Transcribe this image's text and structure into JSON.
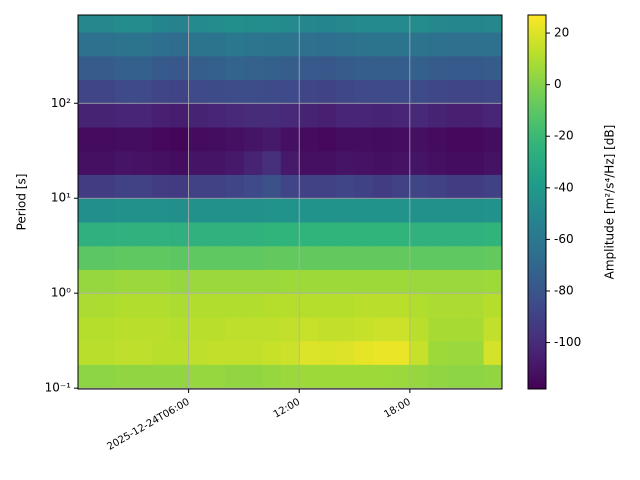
{
  "chart_data": {
    "type": "heatmap",
    "ylabel": "Period [s]",
    "colorbar_label": "Amplitude [m²/s⁴/Hz] [dB]",
    "y_log": true,
    "grid": true,
    "colormap": "viridis",
    "xlim": [
      "2025-12-24T00:00",
      "2025-12-24T23:00"
    ],
    "xticks": [
      {
        "value": "2025-12-24T06:00",
        "label": "2025-12-24T06:00"
      },
      {
        "value": "2025-12-24T12:00",
        "label": "12:00"
      },
      {
        "value": "2025-12-24T18:00",
        "label": "18:00"
      }
    ],
    "ylim": [
      0.098,
      850
    ],
    "yticks": [
      {
        "value": 0.1,
        "label": "10⁻¹"
      },
      {
        "value": 1,
        "label": "10⁰"
      },
      {
        "value": 10,
        "label": "10¹"
      },
      {
        "value": 100,
        "label": "10²"
      }
    ],
    "clim": [
      -118,
      27
    ],
    "cticks": [
      20,
      0,
      -20,
      -40,
      -60,
      -80,
      -100
    ],
    "x_edges": [
      "2025-12-24T00:00",
      "2025-12-24T01:00",
      "2025-12-24T02:00",
      "2025-12-24T03:00",
      "2025-12-24T04:00",
      "2025-12-24T05:00",
      "2025-12-24T06:00",
      "2025-12-24T07:00",
      "2025-12-24T08:00",
      "2025-12-24T09:00",
      "2025-12-24T10:00",
      "2025-12-24T11:00",
      "2025-12-24T12:00",
      "2025-12-24T13:00",
      "2025-12-24T14:00",
      "2025-12-24T15:00",
      "2025-12-24T16:00",
      "2025-12-24T17:00",
      "2025-12-24T18:00",
      "2025-12-24T19:00",
      "2025-12-24T20:00",
      "2025-12-24T21:00",
      "2025-12-24T22:00",
      "2025-12-24T23:00"
    ],
    "y_edges": [
      0.1,
      0.178,
      0.316,
      0.562,
      1,
      1.78,
      3.16,
      5.62,
      10,
      17.8,
      31.6,
      56.2,
      100,
      178,
      316,
      562,
      1000
    ],
    "values": [
      [
        2,
        2,
        3,
        3,
        3,
        3,
        4,
        4,
        3,
        3,
        4,
        5,
        6,
        6,
        6,
        6,
        6,
        5,
        4,
        3,
        2,
        2,
        3
      ],
      [
        12,
        12,
        13,
        13,
        12,
        12,
        13,
        14,
        14,
        14,
        15,
        16,
        20,
        19,
        20,
        22,
        23,
        23,
        15,
        6,
        5,
        5,
        18
      ],
      [
        11,
        11,
        12,
        12,
        12,
        11,
        12,
        12,
        13,
        13,
        13,
        14,
        15,
        14,
        14,
        15,
        16,
        16,
        12,
        8,
        8,
        8,
        14
      ],
      [
        9,
        9,
        10,
        10,
        10,
        9,
        10,
        10,
        10,
        10,
        11,
        11,
        11,
        11,
        11,
        12,
        12,
        12,
        10,
        9,
        9,
        9,
        11
      ],
      [
        4,
        4,
        5,
        5,
        5,
        4,
        5,
        5,
        5,
        5,
        5,
        6,
        6,
        6,
        6,
        6,
        6,
        6,
        5,
        5,
        5,
        5,
        6
      ],
      [
        -10,
        -10,
        -9,
        -9,
        -9,
        -10,
        -9,
        -9,
        -9,
        -9,
        -8,
        -8,
        -8,
        -8,
        -8,
        -8,
        -8,
        -8,
        -9,
        -9,
        -9,
        -9,
        -8
      ],
      [
        -26,
        -26,
        -25,
        -25,
        -25,
        -26,
        -25,
        -25,
        -25,
        -25,
        -24,
        -24,
        -24,
        -24,
        -24,
        -24,
        -24,
        -24,
        -25,
        -25,
        -25,
        -25,
        -24
      ],
      [
        -46,
        -46,
        -45,
        -45,
        -45,
        -46,
        -45,
        -45,
        -45,
        -45,
        -44,
        -44,
        -44,
        -44,
        -44,
        -44,
        -44,
        -44,
        -45,
        -45,
        -45,
        -45,
        -44
      ],
      [
        -92,
        -92,
        -90,
        -90,
        -92,
        -93,
        -90,
        -90,
        -88,
        -86,
        -82,
        -88,
        -90,
        -90,
        -88,
        -90,
        -92,
        -90,
        -88,
        -90,
        -92,
        -92,
        -90
      ],
      [
        -112,
        -112,
        -110,
        -111,
        -112,
        -113,
        -110,
        -110,
        -108,
        -104,
        -98,
        -108,
        -112,
        -112,
        -110,
        -111,
        -112,
        -111,
        -110,
        -112,
        -113,
        -113,
        -111
      ],
      [
        -114,
        -114,
        -113,
        -113,
        -115,
        -116,
        -114,
        -113,
        -112,
        -110,
        -108,
        -112,
        -114,
        -115,
        -113,
        -113,
        -114,
        -113,
        -112,
        -114,
        -115,
        -115,
        -113
      ],
      [
        -104,
        -104,
        -103,
        -103,
        -105,
        -106,
        -104,
        -103,
        -102,
        -100,
        -100,
        -102,
        -104,
        -105,
        -103,
        -103,
        -104,
        -103,
        -102,
        -104,
        -105,
        -105,
        -103
      ],
      [
        -88,
        -88,
        -86,
        -86,
        -88,
        -89,
        -86,
        -85,
        -84,
        -84,
        -85,
        -86,
        -88,
        -89,
        -87,
        -86,
        -86,
        -86,
        -85,
        -87,
        -88,
        -88,
        -87
      ],
      [
        -76,
        -76,
        -74,
        -74,
        -77,
        -78,
        -75,
        -74,
        -72,
        -73,
        -74,
        -75,
        -77,
        -78,
        -76,
        -75,
        -75,
        -75,
        -74,
        -76,
        -77,
        -77,
        -76
      ],
      [
        -64,
        -64,
        -62,
        -62,
        -66,
        -67,
        -63,
        -62,
        -60,
        -61,
        -62,
        -63,
        -65,
        -66,
        -64,
        -63,
        -63,
        -63,
        -62,
        -64,
        -65,
        -65,
        -64
      ],
      [
        -50,
        -50,
        -48,
        -48,
        -52,
        -53,
        -49,
        -48,
        -46,
        -47,
        -48,
        -49,
        -51,
        -52,
        -50,
        -49,
        -49,
        -49,
        -48,
        -50,
        -51,
        -51,
        -50
      ]
    ]
  }
}
